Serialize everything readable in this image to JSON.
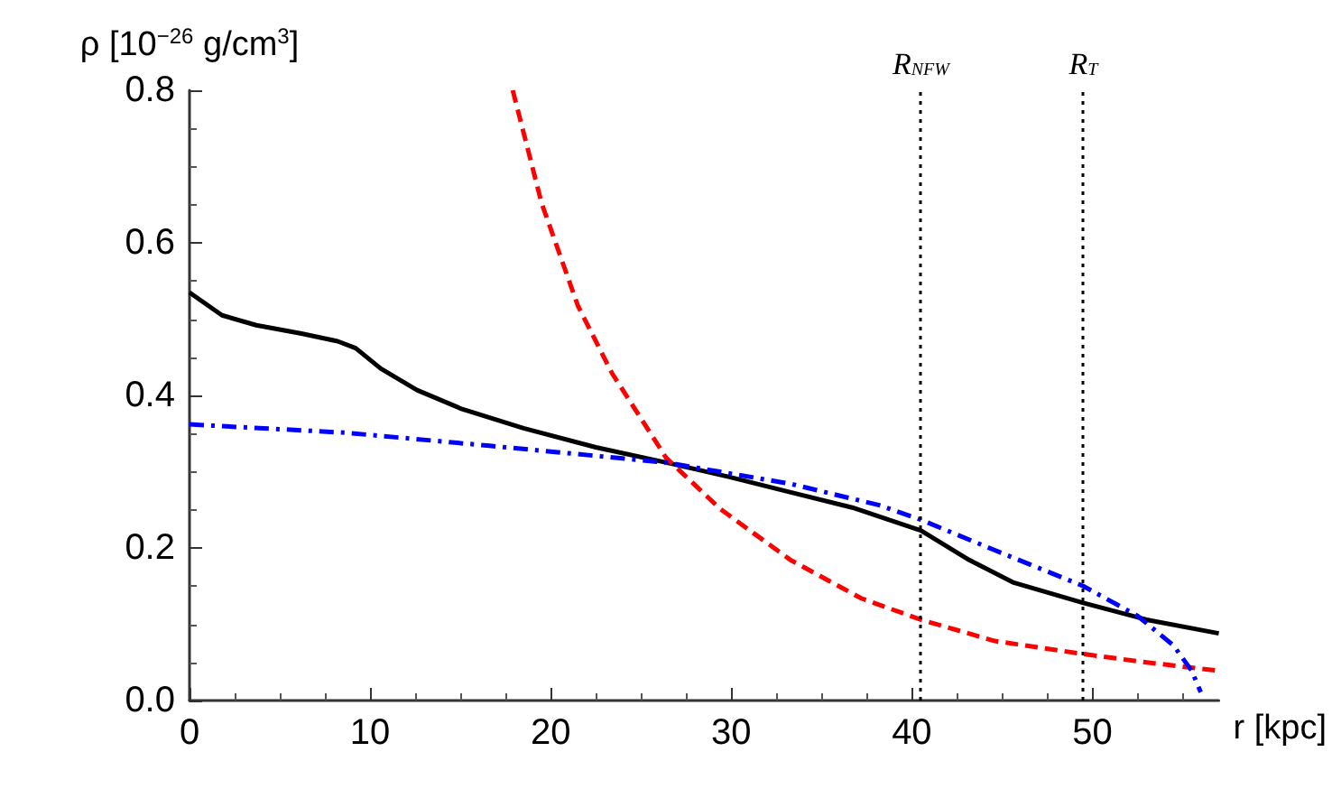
{
  "chart_data": {
    "type": "line",
    "xlabel": "r [kpc]",
    "ylabel": "ρ [10$^{−26}$ g/cm$^{3}$]",
    "xlim": [
      0,
      57
    ],
    "xticks": [
      0,
      10,
      20,
      30,
      40,
      50
    ],
    "ylim": [
      0,
      0.8
    ],
    "yticks": [
      {
        "value": 0,
        "label": "0.0"
      },
      0.2,
      0.4,
      0.6,
      0.8
    ],
    "grid": false,
    "marker": "none",
    "series": [
      {
        "color": "#000000",
        "line_style": "solid",
        "x": [
          0,
          1.8,
          3.7,
          6.2,
          8.2,
          9.2,
          10.6,
          12.6,
          15.1,
          18.5,
          22.5,
          26.4,
          29.9,
          33.3,
          36.7,
          40.5,
          43.2,
          45.6,
          49.5,
          53,
          57
        ],
        "values": [
          0.535,
          0.505,
          0.492,
          0.481,
          0.471,
          0.462,
          0.435,
          0.407,
          0.382,
          0.357,
          0.332,
          0.312,
          0.293,
          0.273,
          0.253,
          0.223,
          0.184,
          0.155,
          0.128,
          0.106,
          0.088
        ]
      },
      {
        "color": "#ff0000",
        "line_style": "dashed",
        "x": [
          17.9,
          19.5,
          21.5,
          23.4,
          26.4,
          29.4,
          33.3,
          37.2,
          40.5,
          44.6,
          49.5,
          53,
          57
        ],
        "values": [
          0.8,
          0.652,
          0.518,
          0.429,
          0.318,
          0.251,
          0.184,
          0.134,
          0.106,
          0.078,
          0.061,
          0.05,
          0.039
        ]
      },
      {
        "color": "#0000ff",
        "line_style": "dashdot",
        "x": [
          0,
          8.7,
          16.6,
          26.4,
          33.3,
          38.2,
          40.5,
          44.6,
          49.5,
          52.5,
          54.5,
          55.5,
          56
        ],
        "values": [
          0.362,
          0.351,
          0.334,
          0.312,
          0.284,
          0.256,
          0.237,
          0.197,
          0.15,
          0.111,
          0.072,
          0.039,
          0.011
        ]
      }
    ],
    "ref_lines": [
      {
        "axis": "x",
        "value": 40.5,
        "label": "R$_{NFW}$",
        "color": "#000000",
        "line_style": "dotted"
      },
      {
        "axis": "x",
        "value": 49.5,
        "label": "R$_{T}$",
        "color": "#000000",
        "line_style": "dotted"
      }
    ]
  }
}
